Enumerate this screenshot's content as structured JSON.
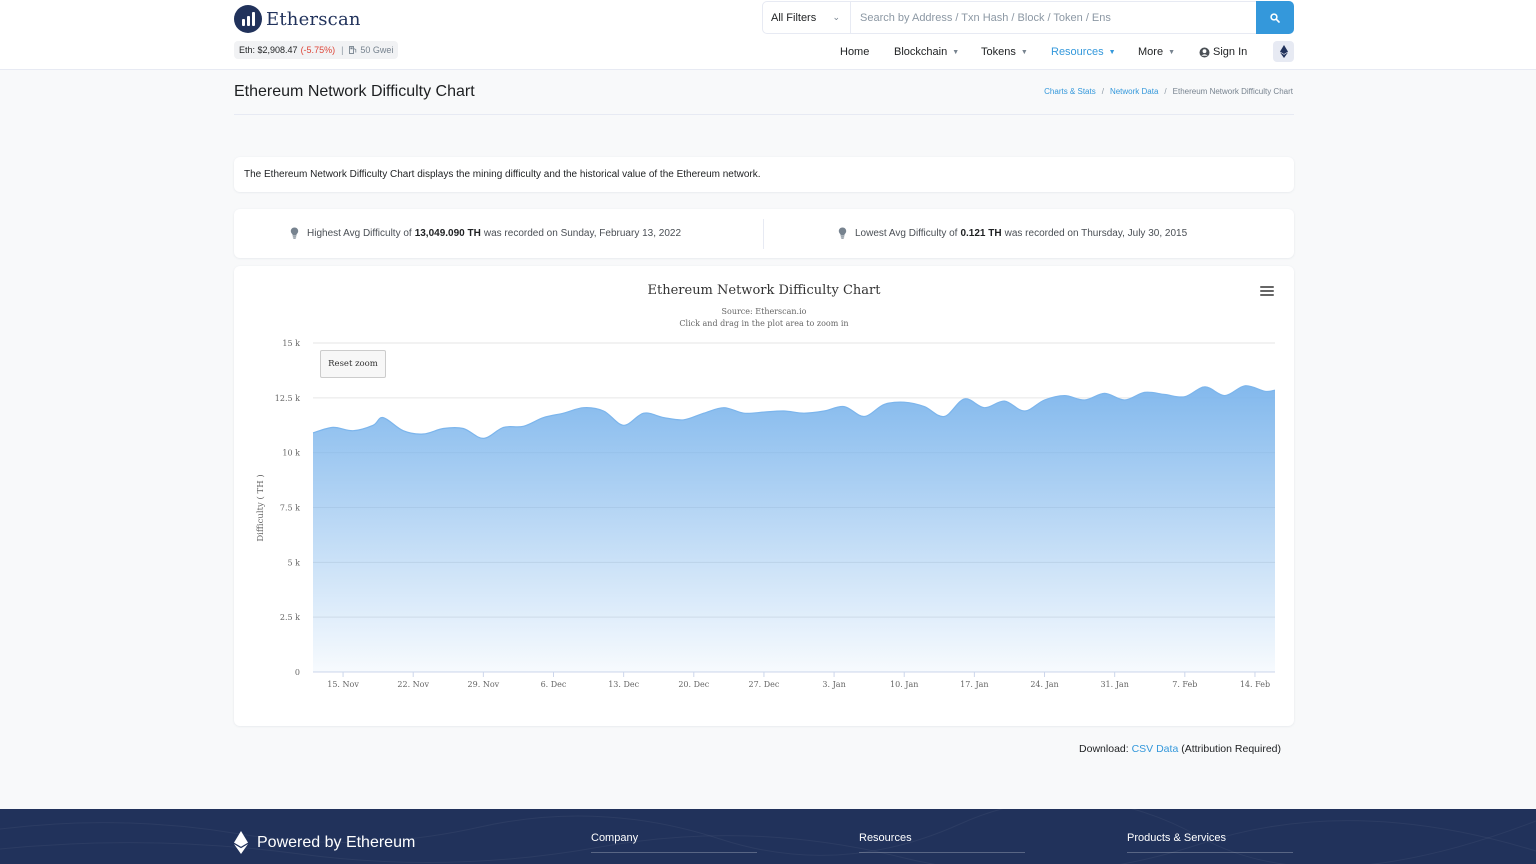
{
  "header": {
    "logo_text": "Etherscan",
    "eth_price_label": "Eth: $2,908.47",
    "eth_change": "(-5.75%)",
    "separator": "|",
    "gas": "50 Gwei",
    "search": {
      "filter_label": "All Filters",
      "placeholder": "Search by Address / Txn Hash / Block / Token / Ens"
    },
    "nav": {
      "home": "Home",
      "blockchain": "Blockchain",
      "tokens": "Tokens",
      "resources": "Resources",
      "more": "More",
      "sign_in": "Sign In"
    }
  },
  "page": {
    "title": "Ethereum Network Difficulty Chart",
    "breadcrumb": [
      "Charts & Stats",
      "Network Data",
      "Ethereum Network Difficulty Chart"
    ],
    "breadcrumb_sep": "/",
    "description": "The Ethereum Network Difficulty Chart displays the mining difficulty and the historical value of the Ethereum network.",
    "stats": {
      "highest_prefix": "Highest Avg Difficulty of",
      "highest_value": "13,049.090 TH",
      "highest_suffix": "was recorded on Sunday, February 13, 2022",
      "lowest_prefix": "Lowest Avg Difficulty of",
      "lowest_value": "0.121 TH",
      "lowest_suffix": "was recorded on Thursday, July 30, 2015"
    },
    "reset_zoom": "Reset zoom",
    "download": {
      "prefix": "Download:",
      "link": "CSV Data",
      "suffix": "(Attribution Required)"
    }
  },
  "footer": {
    "brand": "Powered by Ethereum",
    "columns": [
      "Company",
      "Resources",
      "Products & Services"
    ]
  },
  "colors": {
    "brand": "#21325b",
    "accent": "#3498db",
    "negative": "#de4437",
    "area_top": "#7cb5ec"
  },
  "chart_data": {
    "type": "area",
    "title": "Ethereum Network Difficulty Chart",
    "subtitle": "Source: Etherscan.io",
    "subtitle2": "Click and drag in the plot area to zoom in",
    "ylabel": "Difficulty ( TH )",
    "xlabel": "",
    "ylim": [
      0,
      15000
    ],
    "y_ticks": [
      0,
      2500,
      5000,
      7500,
      10000,
      12500,
      15000
    ],
    "y_tick_labels": [
      "0",
      "2.5 k",
      "5 k",
      "7.5 k",
      "10 k",
      "12.5 k",
      "15 k"
    ],
    "x_ticks": [
      "2021-11-15",
      "2021-11-22",
      "2021-11-29",
      "2021-12-06",
      "2021-12-13",
      "2021-12-20",
      "2021-12-27",
      "2022-01-03",
      "2022-01-10",
      "2022-01-17",
      "2022-01-24",
      "2022-01-31",
      "2022-02-07",
      "2022-02-14"
    ],
    "x_tick_labels": [
      "15. Nov",
      "22. Nov",
      "29. Nov",
      "6. Dec",
      "13. Dec",
      "20. Dec",
      "27. Dec",
      "3. Jan",
      "10. Jan",
      "17. Jan",
      "24. Jan",
      "31. Jan",
      "7. Feb",
      "14. Feb"
    ],
    "x_range": [
      "2021-11-12",
      "2022-02-16"
    ],
    "grid": true,
    "legend": "none",
    "series": [
      {
        "x": [
          "2021-11-12",
          "2021-11-14",
          "2021-11-16",
          "2021-11-18",
          "2021-11-19",
          "2021-11-21",
          "2021-11-23",
          "2021-11-25",
          "2021-11-27",
          "2021-11-29",
          "2021-12-01",
          "2021-12-03",
          "2021-12-05",
          "2021-12-07",
          "2021-12-09",
          "2021-12-11",
          "2021-12-13",
          "2021-12-15",
          "2021-12-17",
          "2021-12-19",
          "2021-12-21",
          "2021-12-23",
          "2021-12-25",
          "2021-12-27",
          "2021-12-29",
          "2021-12-31",
          "2022-01-02",
          "2022-01-04",
          "2022-01-06",
          "2022-01-08",
          "2022-01-10",
          "2022-01-12",
          "2022-01-14",
          "2022-01-16",
          "2022-01-18",
          "2022-01-20",
          "2022-01-22",
          "2022-01-24",
          "2022-01-26",
          "2022-01-28",
          "2022-01-30",
          "2022-02-01",
          "2022-02-03",
          "2022-02-05",
          "2022-02-07",
          "2022-02-09",
          "2022-02-11",
          "2022-02-13",
          "2022-02-15",
          "2022-02-16"
        ],
        "values": [
          10900,
          11150,
          11000,
          11250,
          11600,
          11000,
          10850,
          11100,
          11100,
          10650,
          11150,
          11200,
          11600,
          11800,
          12050,
          11900,
          11250,
          11800,
          11600,
          11500,
          11800,
          12050,
          11800,
          11850,
          11900,
          11800,
          11900,
          12100,
          11650,
          12200,
          12300,
          12100,
          11650,
          12450,
          12050,
          12350,
          11900,
          12400,
          12600,
          12400,
          12700,
          12400,
          12750,
          12650,
          12550,
          13000,
          12600,
          13049,
          12800,
          12850
        ]
      }
    ]
  }
}
